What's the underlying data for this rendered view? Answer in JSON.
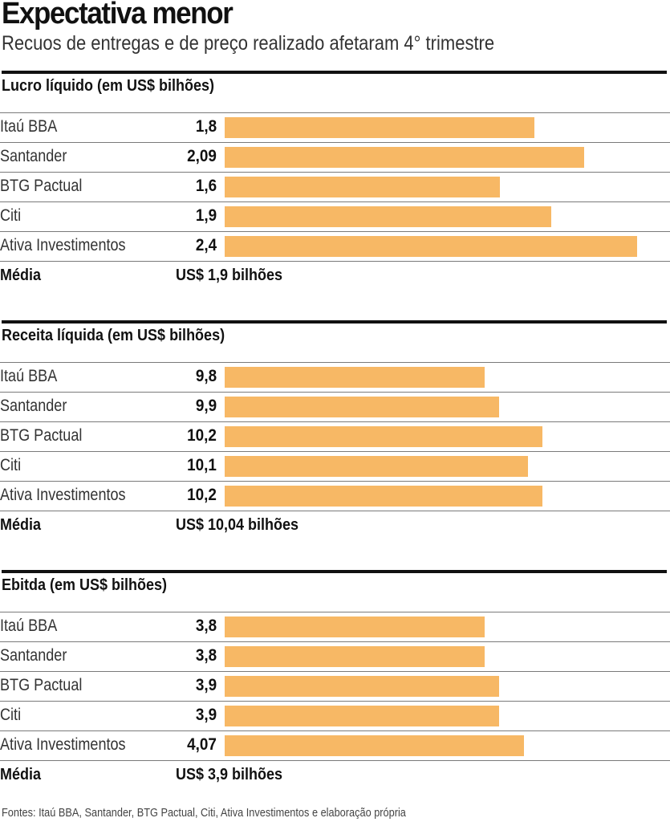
{
  "header": {
    "title": "Expectativa menor",
    "subtitle": "Recuos de entregas e de preço realizado afetaram 4° trimestre"
  },
  "colors": {
    "bar": "#F7B865",
    "rule": "#111111",
    "separator": "#7a7a7a"
  },
  "chart_data": [
    {
      "type": "bar",
      "orientation": "horizontal",
      "title": "Lucro líquido (em US$ bilhões)",
      "categories": [
        "Itaú BBA",
        "Santander",
        "BTG Pactual",
        "Citi",
        "Ativa Investimentos"
      ],
      "values": [
        1.8,
        2.09,
        1.6,
        1.9,
        2.4
      ],
      "value_labels": [
        "1,8",
        "2,09",
        "1,6",
        "1,9",
        "2,4"
      ],
      "xlim": [
        0,
        2.59
      ],
      "average_label": "Média",
      "average_value": "US$ 1,9 bilhões"
    },
    {
      "type": "bar",
      "orientation": "horizontal",
      "title": "Receita líquida (em US$ bilhões)",
      "categories": [
        "Itaú BBA",
        "Santander",
        "BTG Pactual",
        "Citi",
        "Ativa Investimentos"
      ],
      "values": [
        9.8,
        9.9,
        10.2,
        10.1,
        10.2
      ],
      "value_labels": [
        "9,8",
        "9,9",
        "10,2",
        "10,1",
        "10,2"
      ],
      "xlim": [
        8,
        11.08
      ],
      "average_label": "Média",
      "average_value": "US$ 10,04 bilhões"
    },
    {
      "type": "bar",
      "orientation": "horizontal",
      "title": "Ebitda (em US$ bilhões)",
      "categories": [
        "Itaú BBA",
        "Santander",
        "BTG Pactual",
        "Citi",
        "Ativa Investimentos"
      ],
      "values": [
        3.8,
        3.8,
        3.9,
        3.9,
        4.07
      ],
      "value_labels": [
        "3,8",
        "3,8",
        "3,9",
        "3,9",
        "4,07"
      ],
      "xlim": [
        2,
        5.08
      ],
      "average_label": "Média",
      "average_value": "US$ 3,9 bilhões"
    }
  ],
  "footer": {
    "source": "Fontes: Itaú BBA, Santander, BTG Pactual, Citi, Ativa Investimentos e elaboração própria"
  }
}
